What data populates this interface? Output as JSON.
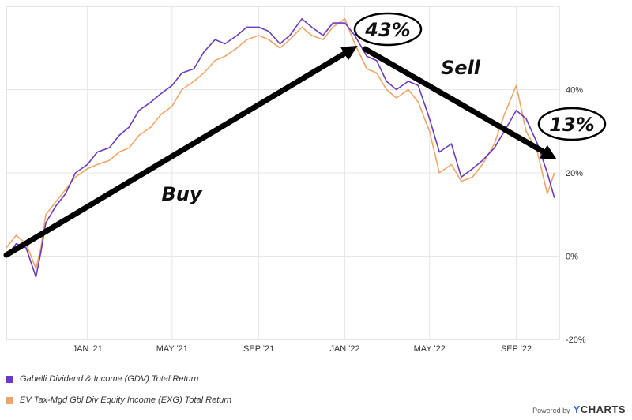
{
  "chart_data": {
    "type": "line",
    "ylim": [
      -20,
      60
    ],
    "y_ticks": [
      "40%",
      "20%",
      "0%",
      "-20%"
    ],
    "y_tick_values": [
      40,
      20,
      0,
      -20
    ],
    "x_ticks": [
      "JAN '21",
      "MAY '21",
      "SEP '21",
      "JAN '22",
      "MAY '22",
      "SEP '22"
    ],
    "x_tick_dates": [
      "2021-01-01",
      "2021-05-01",
      "2021-09-01",
      "2022-01-01",
      "2022-05-01",
      "2022-09-01"
    ],
    "x_range": [
      "2020-09-08",
      "2022-11-01"
    ],
    "grid": true,
    "legend_position": "bottom-left",
    "series": [
      {
        "name": "Gabelli Dividend & Income (GDV) Total Return",
        "color": "#6a3bbf",
        "x": [
          "2020-09-08",
          "2020-09-22",
          "2020-10-06",
          "2020-10-20",
          "2020-10-27",
          "2020-11-03",
          "2020-11-17",
          "2020-12-01",
          "2020-12-15",
          "2021-01-01",
          "2021-01-15",
          "2021-02-01",
          "2021-02-15",
          "2021-03-01",
          "2021-03-15",
          "2021-04-01",
          "2021-04-15",
          "2021-05-01",
          "2021-05-15",
          "2021-06-01",
          "2021-06-15",
          "2021-07-01",
          "2021-07-15",
          "2021-08-01",
          "2021-08-15",
          "2021-09-01",
          "2021-09-15",
          "2021-10-01",
          "2021-10-15",
          "2021-11-01",
          "2021-11-15",
          "2021-12-01",
          "2021-12-15",
          "2022-01-01",
          "2022-01-15",
          "2022-02-01",
          "2022-02-15",
          "2022-03-01",
          "2022-03-15",
          "2022-04-01",
          "2022-04-15",
          "2022-05-01",
          "2022-05-15",
          "2022-06-01",
          "2022-06-15",
          "2022-07-01",
          "2022-07-15",
          "2022-08-01",
          "2022-08-15",
          "2022-09-01",
          "2022-09-15",
          "2022-10-01",
          "2022-10-15",
          "2022-10-25"
        ],
        "values": [
          0,
          3,
          2,
          -5,
          1,
          8,
          12,
          15,
          20,
          22,
          25,
          26,
          29,
          31,
          35,
          37,
          39,
          41,
          44,
          45,
          49,
          52,
          51,
          53,
          55,
          55,
          54,
          51,
          53,
          57,
          55,
          53,
          56,
          56,
          53,
          48,
          47,
          42,
          40,
          42,
          41,
          33,
          25,
          27,
          19,
          21,
          23,
          26,
          30,
          35,
          33,
          27,
          20,
          14
        ]
      },
      {
        "name": "EV Tax-Mgd Gbl Div Equity Income (EXG) Total Return",
        "color": "#f2a466",
        "x": [
          "2020-09-08",
          "2020-09-22",
          "2020-10-06",
          "2020-10-20",
          "2020-10-27",
          "2020-11-03",
          "2020-11-17",
          "2020-12-01",
          "2020-12-15",
          "2021-01-01",
          "2021-01-15",
          "2021-02-01",
          "2021-02-15",
          "2021-03-01",
          "2021-03-15",
          "2021-04-01",
          "2021-04-15",
          "2021-05-01",
          "2021-05-15",
          "2021-06-01",
          "2021-06-15",
          "2021-07-01",
          "2021-07-15",
          "2021-08-01",
          "2021-08-15",
          "2021-09-01",
          "2021-09-15",
          "2021-10-01",
          "2021-10-15",
          "2021-11-01",
          "2021-11-15",
          "2021-12-01",
          "2021-12-15",
          "2022-01-01",
          "2022-01-15",
          "2022-02-01",
          "2022-02-15",
          "2022-03-01",
          "2022-03-15",
          "2022-04-01",
          "2022-04-15",
          "2022-05-01",
          "2022-05-15",
          "2022-06-01",
          "2022-06-15",
          "2022-07-01",
          "2022-07-15",
          "2022-08-01",
          "2022-08-15",
          "2022-09-01",
          "2022-09-15",
          "2022-10-01",
          "2022-10-15",
          "2022-10-25"
        ],
        "values": [
          2,
          5,
          3,
          -3,
          2,
          10,
          13,
          16,
          19,
          21,
          22,
          23,
          25,
          26,
          29,
          31,
          34,
          36,
          40,
          42,
          44,
          47,
          48,
          50,
          52,
          53,
          52,
          50,
          52,
          55,
          53,
          52,
          55,
          57,
          51,
          45,
          44,
          40,
          38,
          40,
          37,
          30,
          20,
          22,
          18,
          19,
          22,
          27,
          34,
          41,
          30,
          25,
          15,
          20
        ]
      }
    ],
    "annotations": [
      {
        "text": "43%",
        "kind": "circled-callout",
        "x": "2022-01-15",
        "y": 50
      },
      {
        "text": "13%",
        "kind": "circled-callout",
        "x": "2022-10-25",
        "y": 16
      },
      {
        "text": "Buy",
        "kind": "label",
        "x": "2021-05-01",
        "y": 15
      },
      {
        "text": "Sell",
        "kind": "label",
        "x": "2022-04-20",
        "y": 45
      }
    ]
  },
  "legend": {
    "gdv": "Gabelli Dividend & Income (GDV) Total Return",
    "exg": "EV Tax-Mgd Gbl Div Equity Income (EXG) Total Return"
  },
  "brand": {
    "powered": "Powered by",
    "logo_y": "Y",
    "logo_rest": "CHARTS"
  }
}
